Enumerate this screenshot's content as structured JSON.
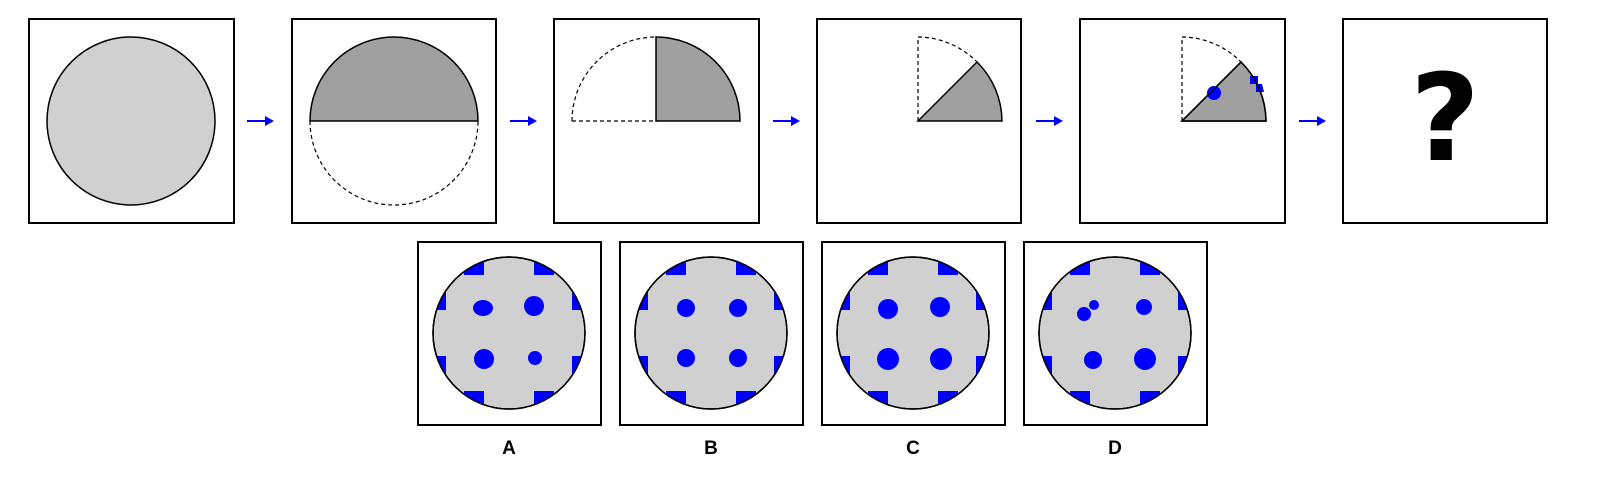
{
  "colors": {
    "paper": "#d0d0d0",
    "folded": "#a0a0a0",
    "hole": "#0000ff",
    "arrow": "#0000ff",
    "frame": "#000000"
  },
  "sequence": {
    "question_mark": "?"
  },
  "options": [
    {
      "label": "A"
    },
    {
      "label": "B"
    },
    {
      "label": "C"
    },
    {
      "label": "D"
    }
  ]
}
